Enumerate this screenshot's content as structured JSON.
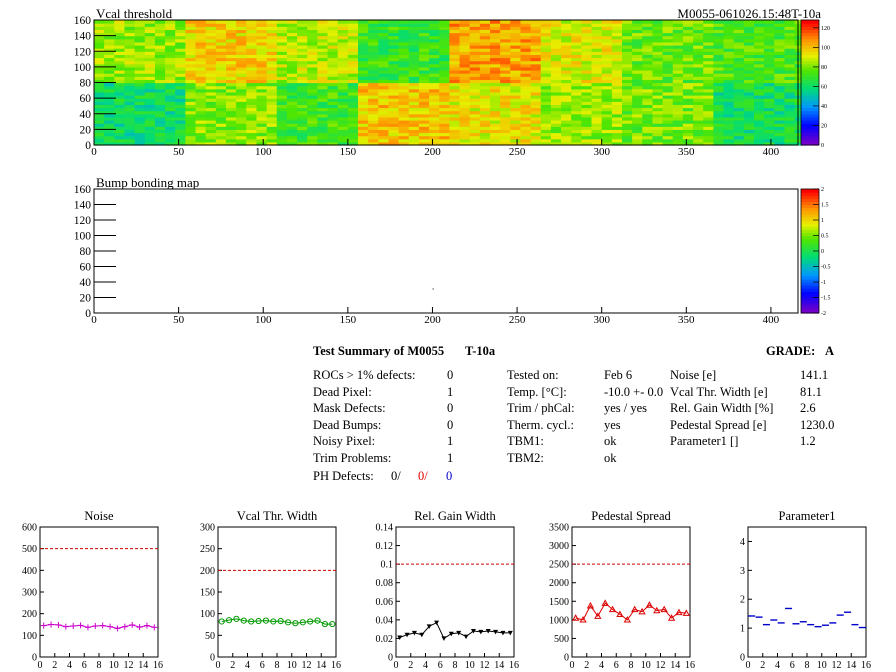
{
  "heat1": {
    "title": "Vcal threshold",
    "run_id": "M0055-061026.15:48T-10a",
    "x_ticks": [
      0,
      50,
      100,
      150,
      200,
      250,
      300,
      350,
      400
    ],
    "y_ticks": [
      0,
      20,
      40,
      60,
      80,
      100,
      120,
      140,
      160
    ],
    "z_ticks": [
      "0",
      "20",
      "40",
      "60",
      "80",
      "100",
      "120"
    ]
  },
  "heat2": {
    "title": "Bump bonding map",
    "x_ticks": [
      0,
      50,
      100,
      150,
      200,
      250,
      300,
      350,
      400
    ],
    "y_ticks": [
      0,
      20,
      40,
      60,
      80,
      100,
      120,
      140,
      160
    ],
    "z_ticks": [
      "-2",
      "-1.5",
      "-1",
      "-0.5",
      "0",
      "0.5",
      "1",
      "1.5",
      "2"
    ]
  },
  "summary": {
    "title": "Test Summary of M0055",
    "tag": "T-10a",
    "grade_label": "GRADE:",
    "grade": "A",
    "defects": [
      {
        "label": "ROCs > 1% defects:",
        "value": "0"
      },
      {
        "label": "Dead Pixel:",
        "value": "1"
      },
      {
        "label": "Mask Defects:",
        "value": "0"
      },
      {
        "label": "Dead Bumps:",
        "value": "0"
      },
      {
        "label": "Noisy Pixel:",
        "value": "1"
      },
      {
        "label": "Trim Problems:",
        "value": "1"
      }
    ],
    "ph_label": "PH Defects:",
    "ph_values": [
      {
        "text": "0/",
        "color": "#000000"
      },
      {
        "text": "0/",
        "color": "#e00000"
      },
      {
        "text": "0",
        "color": "#0000cc"
      }
    ],
    "conditions": [
      {
        "label": "Tested on:",
        "value": "Feb 6"
      },
      {
        "label": "Temp. [°C]:",
        "value": "-10.0 +- 0.0"
      },
      {
        "label": "Trim / phCal:",
        "value": "yes / yes"
      },
      {
        "label": "Therm. cycl.:",
        "value": "yes"
      },
      {
        "label": "TBM1:",
        "value": "ok"
      },
      {
        "label": "TBM2:",
        "value": "ok"
      }
    ],
    "results": [
      {
        "label": "Noise [e]",
        "value": "141.1"
      },
      {
        "label": "Vcal Thr. Width [e]",
        "value": "81.1"
      },
      {
        "label": "Rel. Gain Width [%]",
        "value": "2.6"
      },
      {
        "label": "Pedestal Spread [e]",
        "value": "1230.0"
      },
      {
        "label": "Parameter1 []",
        "value": "1.2"
      }
    ]
  },
  "chart_data": [
    {
      "type": "heatmap",
      "title": "Vcal threshold",
      "xlim": [
        0,
        416
      ],
      "ylim": [
        0,
        160
      ],
      "zlim": [
        0,
        128
      ],
      "colorbar_ticks": [
        0,
        20,
        40,
        60,
        80,
        100,
        120
      ],
      "roc_mean_top": [
        84,
        98,
        88,
        70,
        106,
        92,
        78,
        74
      ],
      "roc_mean_bottom": [
        60,
        82,
        72,
        100,
        94,
        84,
        80,
        62
      ]
    },
    {
      "type": "heatmap",
      "title": "Bump bonding map",
      "xlim": [
        0,
        416
      ],
      "ylim": [
        0,
        160
      ],
      "zlim": [
        -2,
        2
      ],
      "colorbar_ticks": [
        -2,
        -1.5,
        -1,
        -0.5,
        0,
        0.5,
        1,
        1.5,
        2
      ],
      "points": [
        [
          200,
          12
        ]
      ]
    },
    {
      "type": "line",
      "title": "Noise",
      "x": [
        0,
        1,
        2,
        3,
        4,
        5,
        6,
        7,
        8,
        9,
        10,
        11,
        12,
        13,
        14,
        15
      ],
      "xlim": [
        0,
        16
      ],
      "ylim": [
        0,
        600
      ],
      "y_ticks": [
        0,
        100,
        200,
        300,
        400,
        500,
        600
      ],
      "x_ticks": [
        0,
        2,
        4,
        6,
        8,
        10,
        12,
        14,
        16
      ],
      "values": [
        145,
        150,
        148,
        140,
        143,
        146,
        137,
        143,
        145,
        140,
        132,
        140,
        148,
        138,
        145,
        137
      ],
      "limit": 500,
      "color": "#cc00cc",
      "marker": "cross"
    },
    {
      "type": "line",
      "title": "Vcal Thr. Width",
      "x": [
        0,
        1,
        2,
        3,
        4,
        5,
        6,
        7,
        8,
        9,
        10,
        11,
        12,
        13,
        14,
        15
      ],
      "xlim": [
        0,
        16
      ],
      "ylim": [
        0,
        300
      ],
      "y_ticks": [
        0,
        50,
        100,
        150,
        200,
        250,
        300
      ],
      "x_ticks": [
        0,
        2,
        4,
        6,
        8,
        10,
        12,
        14,
        16
      ],
      "values": [
        82,
        85,
        88,
        84,
        82,
        83,
        84,
        82,
        83,
        80,
        78,
        80,
        82,
        84,
        76,
        76
      ],
      "limit": 200,
      "color": "#009900",
      "marker": "circle"
    },
    {
      "type": "line",
      "title": "Rel. Gain Width",
      "x": [
        0,
        1,
        2,
        3,
        4,
        5,
        6,
        7,
        8,
        9,
        10,
        11,
        12,
        13,
        14,
        15
      ],
      "xlim": [
        0,
        16
      ],
      "ylim": [
        0,
        0.14
      ],
      "y_ticks": [
        0,
        0.02,
        0.04,
        0.06,
        0.08,
        0.1,
        0.12,
        0.14
      ],
      "x_ticks": [
        0,
        2,
        4,
        6,
        8,
        10,
        12,
        14,
        16
      ],
      "y_tick_labels": [
        "0",
        "0.02",
        "0.04",
        "0.06",
        "0.08",
        "0.1",
        "0.12",
        "0.14"
      ],
      "values": [
        0.021,
        0.024,
        0.026,
        0.024,
        0.033,
        0.037,
        0.02,
        0.025,
        0.026,
        0.022,
        0.028,
        0.027,
        0.028,
        0.027,
        0.026,
        0.026
      ],
      "limit": 0.1,
      "color": "#000000",
      "marker": "triangle-down"
    },
    {
      "type": "line",
      "title": "Pedestal Spread",
      "x": [
        0,
        1,
        2,
        3,
        4,
        5,
        6,
        7,
        8,
        9,
        10,
        11,
        12,
        13,
        14,
        15
      ],
      "xlim": [
        0,
        16
      ],
      "ylim": [
        0,
        3500
      ],
      "y_ticks": [
        0,
        500,
        1000,
        1500,
        2000,
        2500,
        3000,
        3500
      ],
      "x_ticks": [
        0,
        2,
        4,
        6,
        8,
        10,
        12,
        14,
        16
      ],
      "values": [
        1050,
        1000,
        1380,
        1100,
        1450,
        1280,
        1150,
        1000,
        1280,
        1220,
        1400,
        1250,
        1280,
        1050,
        1200,
        1180
      ],
      "limit": 2500,
      "color": "#dd0000",
      "marker": "triangle-up"
    },
    {
      "type": "scatter",
      "title": "Parameter1",
      "x": [
        0,
        1,
        2,
        3,
        4,
        5,
        6,
        7,
        8,
        9,
        10,
        11,
        12,
        13,
        14,
        15
      ],
      "xlim": [
        0,
        16
      ],
      "ylim": [
        0,
        4.5
      ],
      "y_ticks": [
        0,
        1,
        2,
        3,
        4
      ],
      "x_ticks": [
        0,
        2,
        4,
        6,
        8,
        10,
        12,
        14,
        16
      ],
      "values": [
        1.42,
        1.38,
        1.12,
        1.28,
        1.18,
        1.68,
        1.15,
        1.22,
        1.12,
        1.05,
        1.1,
        1.18,
        1.45,
        1.55,
        1.12,
        1.02
      ],
      "color": "#0000cc",
      "marker": "hbar"
    }
  ]
}
